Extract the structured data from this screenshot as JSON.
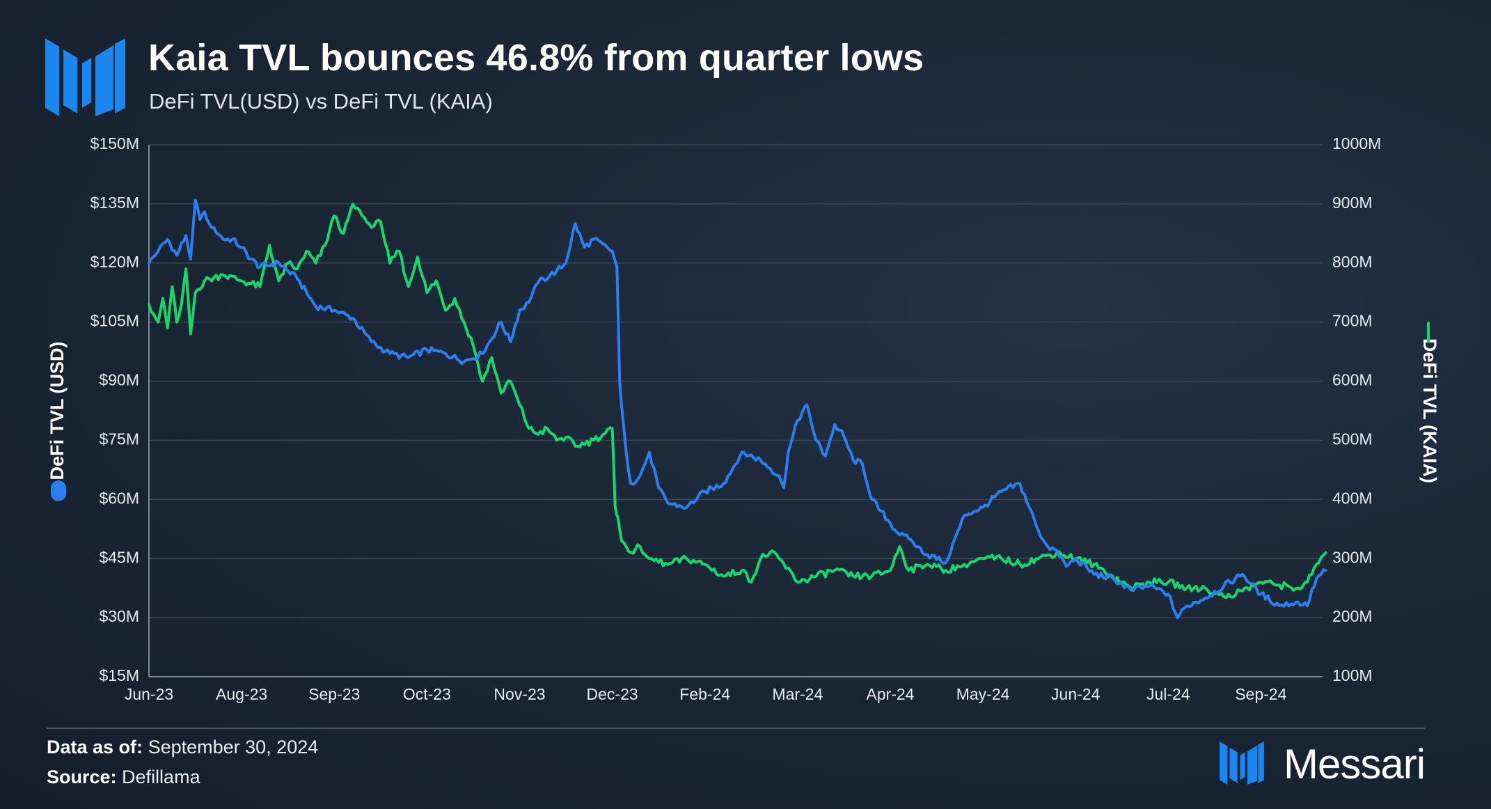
{
  "header": {
    "title": "Kaia TVL bounces 46.8% from quarter lows",
    "subtitle": "DeFi TVL(USD) vs DeFi TVL (KAIA)"
  },
  "footer": {
    "data_as_of_label": "Data as of:",
    "data_as_of_value": "September 30, 2024",
    "source_label": "Source:",
    "source_value": "Defillama",
    "brand": "Messari"
  },
  "colors": {
    "usd": "#2b7ff0",
    "kaia": "#17d76a",
    "grid": "#3a4656",
    "brand": "#1b86f0"
  },
  "chart_data": {
    "type": "line",
    "title": "Kaia TVL bounces 46.8% from quarter lows",
    "subtitle": "DeFi TVL(USD) vs DeFi TVL (KAIA)",
    "x_ticks": [
      "Jun-23",
      "Aug-23",
      "Sep-23",
      "Oct-23",
      "Nov-23",
      "Dec-23",
      "Feb-24",
      "Mar-24",
      "Apr-24",
      "May-24",
      "Jun-24",
      "Jul-24",
      "Sep-24"
    ],
    "y_left": {
      "label": "DeFi TVL (USD)",
      "range": [
        15,
        150
      ],
      "ticks": [
        "$150M",
        "$135M",
        "$120M",
        "$105M",
        "$90M",
        "$75M",
        "$60M",
        "$45M",
        "$30M",
        "$15M"
      ]
    },
    "y_right": {
      "label": "DeFi TVL (KAIA)",
      "range": [
        100,
        1000
      ],
      "ticks": [
        "1000M",
        "900M",
        "800M",
        "700M",
        "600M",
        "500M",
        "400M",
        "300M",
        "200M",
        "100M"
      ]
    },
    "grid": true,
    "series": [
      {
        "name": "DeFi TVL (USD)",
        "axis": "left",
        "unit": "USD millions",
        "x": [
          0,
          0.1,
          0.2,
          0.3,
          0.4,
          0.45,
          0.5,
          0.55,
          0.6,
          0.65,
          0.7,
          0.8,
          0.9,
          1,
          1.1,
          1.2,
          1.4,
          1.6,
          1.8,
          2,
          2.2,
          2.4,
          2.6,
          2.8,
          3,
          3.2,
          3.4,
          3.6,
          3.8,
          3.9,
          4,
          4.1,
          4.2,
          4.4,
          4.5,
          4.6,
          4.7,
          4.8,
          5,
          5.05,
          5.08,
          5.1,
          5.15,
          5.2,
          5.3,
          5.4,
          5.5,
          5.6,
          5.8,
          6,
          6.2,
          6.4,
          6.6,
          6.8,
          6.85,
          6.9,
          7,
          7.1,
          7.2,
          7.3,
          7.4,
          7.5,
          7.6,
          7.7,
          7.8,
          7.9,
          8,
          8.1,
          8.2,
          8.3,
          8.4,
          8.6,
          8.8,
          9,
          9.2,
          9.4,
          9.5,
          9.6,
          9.7,
          9.8,
          9.9,
          10,
          10.2,
          10.4,
          10.6,
          10.8,
          11,
          11.1,
          11.2,
          11.4,
          11.6,
          11.8,
          12,
          12.2,
          12.4,
          12.5,
          12.6,
          12.7
        ],
        "values": [
          120,
          123,
          126,
          122,
          127,
          121,
          136,
          131,
          133,
          130,
          129,
          126,
          126,
          124,
          121,
          119,
          120,
          116,
          109,
          108,
          106,
          100,
          97,
          96,
          98,
          97,
          95,
          97,
          105,
          100,
          108,
          110,
          115,
          118,
          120,
          130,
          124,
          126,
          123,
          119,
          90,
          84,
          72,
          64,
          66,
          72,
          63,
          59,
          58,
          62,
          64,
          72,
          70,
          66,
          63,
          72,
          80,
          84,
          75,
          71,
          79,
          76,
          70,
          69,
          60,
          57,
          54,
          51,
          50,
          48,
          46,
          44,
          56,
          58,
          62,
          64,
          58,
          52,
          48,
          47,
          43,
          45,
          41,
          40,
          37,
          38,
          36,
          30,
          33,
          35,
          38,
          41,
          36,
          33,
          34,
          33,
          40,
          42
        ]
      },
      {
        "name": "DeFi TVL (KAIA)",
        "axis": "right",
        "unit": "KAIA millions",
        "x": [
          0,
          0.1,
          0.15,
          0.2,
          0.25,
          0.3,
          0.35,
          0.4,
          0.45,
          0.5,
          0.6,
          0.8,
          1,
          1.2,
          1.3,
          1.4,
          1.5,
          1.6,
          1.7,
          1.8,
          1.9,
          2,
          2.1,
          2.2,
          2.3,
          2.4,
          2.5,
          2.6,
          2.7,
          2.8,
          2.9,
          3,
          3.1,
          3.2,
          3.3,
          3.4,
          3.5,
          3.6,
          3.7,
          3.8,
          3.9,
          4,
          4.1,
          4.2,
          4.3,
          4.4,
          4.5,
          4.6,
          4.8,
          5,
          5.03,
          5.06,
          5.1,
          5.2,
          5.3,
          5.4,
          5.6,
          5.8,
          6,
          6.2,
          6.4,
          6.5,
          6.6,
          6.7,
          6.8,
          7,
          7.2,
          7.4,
          7.6,
          7.8,
          8,
          8.1,
          8.2,
          8.4,
          8.6,
          8.8,
          9,
          9.2,
          9.4,
          9.6,
          9.8,
          10,
          10.2,
          10.4,
          10.6,
          10.8,
          11,
          11.2,
          11.4,
          11.5,
          11.6,
          11.8,
          12,
          12.2,
          12.4,
          12.5,
          12.6,
          12.7
        ],
        "values": [
          730,
          700,
          740,
          690,
          760,
          700,
          730,
          790,
          680,
          750,
          770,
          780,
          770,
          760,
          830,
          770,
          800,
          790,
          820,
          800,
          830,
          880,
          850,
          900,
          880,
          860,
          870,
          800,
          820,
          760,
          810,
          750,
          770,
          720,
          740,
          700,
          660,
          600,
          640,
          580,
          600,
          560,
          520,
          510,
          520,
          500,
          505,
          490,
          500,
          520,
          390,
          370,
          330,
          310,
          320,
          300,
          290,
          300,
          290,
          270,
          280,
          260,
          300,
          310,
          300,
          260,
          270,
          280,
          270,
          270,
          280,
          320,
          280,
          290,
          280,
          290,
          300,
          300,
          290,
          300,
          310,
          300,
          290,
          270,
          250,
          260,
          260,
          250,
          250,
          240,
          235,
          245,
          260,
          255,
          250,
          260,
          290,
          310
        ]
      }
    ]
  }
}
